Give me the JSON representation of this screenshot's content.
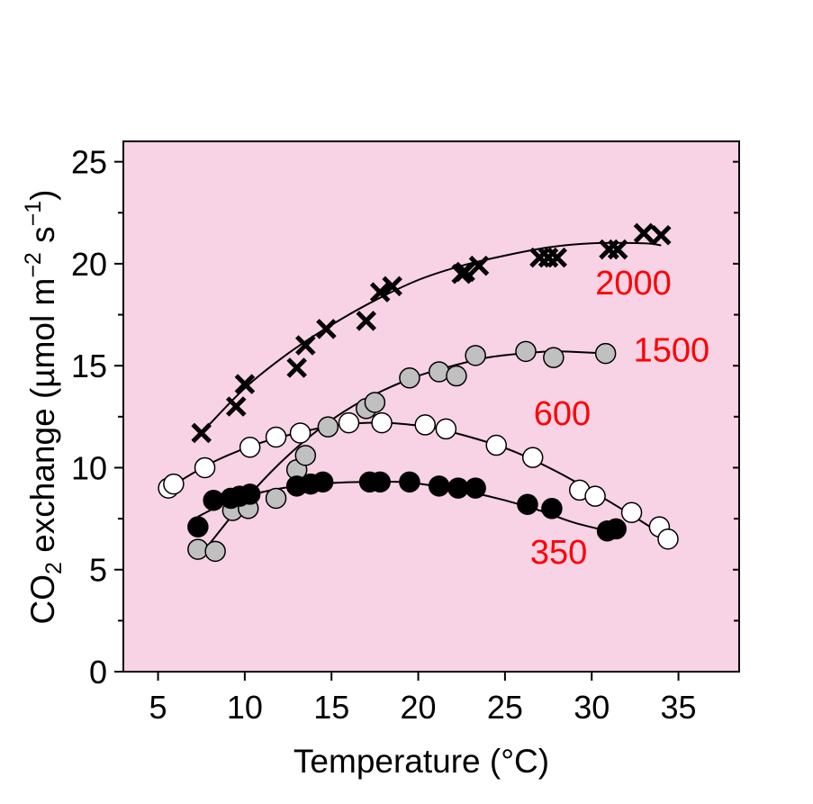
{
  "chart_data": {
    "type": "scatter",
    "xlabel": "Temperature (°C)",
    "ylabel": {
      "prefix": "CO",
      "subscript": "2",
      "middle": " exchange (µmol m",
      "exp1": "−2",
      "s": " s",
      "exp2": "−1",
      "suffix": ")"
    },
    "xlim": [
      3,
      38.5
    ],
    "ylim": [
      0,
      26
    ],
    "xticks": [
      5,
      10,
      15,
      20,
      25,
      30,
      35
    ],
    "yticks": [
      0,
      5,
      10,
      15,
      20,
      25
    ],
    "minor_yticks": [
      2.5,
      7.5,
      12.5,
      17.5,
      22.5
    ],
    "background_color": "#f8d2e5",
    "label_color": "#ff0000",
    "grid": false,
    "series": [
      {
        "name": "2000",
        "marker": "x",
        "fill": "#000000",
        "points": [
          [
            7.5,
            11.7
          ],
          [
            9.5,
            13.0
          ],
          [
            10,
            14.1
          ],
          [
            13,
            14.9
          ],
          [
            13.5,
            16.0
          ],
          [
            14.7,
            16.8
          ],
          [
            17,
            17.2
          ],
          [
            17.8,
            18.6
          ],
          [
            18.5,
            18.9
          ],
          [
            22.5,
            19.5
          ],
          [
            22.7,
            19.6
          ],
          [
            23.5,
            19.9
          ],
          [
            27,
            20.3
          ],
          [
            27.5,
            20.3
          ],
          [
            28,
            20.3
          ],
          [
            31,
            20.7
          ],
          [
            31.5,
            20.7
          ],
          [
            33,
            21.5
          ],
          [
            34,
            21.4
          ]
        ],
        "fit": [
          [
            7.5,
            11.7
          ],
          [
            10,
            13.9
          ],
          [
            12.5,
            15.6
          ],
          [
            15,
            17.0
          ],
          [
            17.5,
            18.2
          ],
          [
            20,
            19.2
          ],
          [
            22.5,
            19.9
          ],
          [
            25,
            20.4
          ],
          [
            27.5,
            20.8
          ],
          [
            30,
            21.0
          ],
          [
            33,
            21.0
          ],
          [
            34,
            20.9
          ]
        ]
      },
      {
        "name": "1500",
        "marker": "o",
        "fill": "#c0c0c0",
        "points": [
          [
            7.3,
            6.0
          ],
          [
            8.3,
            5.9
          ],
          [
            9.3,
            7.9
          ],
          [
            10.2,
            8.0
          ],
          [
            11.8,
            8.5
          ],
          [
            13,
            9.9
          ],
          [
            13.5,
            10.6
          ],
          [
            14.8,
            12.0
          ],
          [
            17,
            12.9
          ],
          [
            17.5,
            13.2
          ],
          [
            19.5,
            14.4
          ],
          [
            21.2,
            14.7
          ],
          [
            22.2,
            14.5
          ],
          [
            23.3,
            15.5
          ],
          [
            26.2,
            15.7
          ],
          [
            27.8,
            15.4
          ],
          [
            30.8,
            15.6
          ]
        ],
        "fit": [
          [
            8,
            6.3
          ],
          [
            10,
            8.4
          ],
          [
            12,
            10.2
          ],
          [
            14,
            11.7
          ],
          [
            16,
            12.9
          ],
          [
            18,
            13.8
          ],
          [
            20,
            14.5
          ],
          [
            22,
            15.0
          ],
          [
            24,
            15.4
          ],
          [
            26,
            15.6
          ],
          [
            28,
            15.7
          ],
          [
            31,
            15.6
          ]
        ]
      },
      {
        "name": "600",
        "marker": "o",
        "fill": "#ffffff",
        "points": [
          [
            5.6,
            9.0
          ],
          [
            5.9,
            9.2
          ],
          [
            7.7,
            10.0
          ],
          [
            10.3,
            11.0
          ],
          [
            11.8,
            11.5
          ],
          [
            13.2,
            11.7
          ],
          [
            16,
            12.2
          ],
          [
            17.9,
            12.2
          ],
          [
            20.4,
            12.1
          ],
          [
            21.6,
            11.9
          ],
          [
            24.5,
            11.1
          ],
          [
            26.6,
            10.5
          ],
          [
            29.3,
            8.9
          ],
          [
            30.2,
            8.6
          ],
          [
            32.3,
            7.8
          ],
          [
            33.9,
            7.1
          ],
          [
            34.4,
            6.5
          ]
        ],
        "fit": [
          [
            5.6,
            9.0
          ],
          [
            8,
            10.2
          ],
          [
            10.5,
            11.1
          ],
          [
            13,
            11.7
          ],
          [
            15.5,
            12.1
          ],
          [
            18,
            12.2
          ],
          [
            20.5,
            12.0
          ],
          [
            23,
            11.5
          ],
          [
            25.5,
            10.8
          ],
          [
            28,
            9.8
          ],
          [
            30.5,
            8.6
          ],
          [
            33,
            7.3
          ],
          [
            34.4,
            6.5
          ]
        ]
      },
      {
        "name": "350",
        "marker": "o",
        "fill": "#000000",
        "points": [
          [
            7.3,
            7.1
          ],
          [
            8.2,
            8.4
          ],
          [
            9.2,
            8.5
          ],
          [
            9.7,
            8.6
          ],
          [
            10.3,
            8.7
          ],
          [
            13,
            9.1
          ],
          [
            13.8,
            9.2
          ],
          [
            14.5,
            9.3
          ],
          [
            17.2,
            9.3
          ],
          [
            17.8,
            9.3
          ],
          [
            19.5,
            9.3
          ],
          [
            21.2,
            9.1
          ],
          [
            22.3,
            9.0
          ],
          [
            23.3,
            9.0
          ],
          [
            26.3,
            8.2
          ],
          [
            27.7,
            8.0
          ],
          [
            30.9,
            6.9
          ],
          [
            31.4,
            7.0
          ]
        ],
        "fit": [
          [
            7.3,
            7.6
          ],
          [
            9,
            8.3
          ],
          [
            11,
            8.8
          ],
          [
            13,
            9.1
          ],
          [
            15,
            9.25
          ],
          [
            17,
            9.3
          ],
          [
            19,
            9.3
          ],
          [
            21,
            9.1
          ],
          [
            23,
            8.8
          ],
          [
            25,
            8.4
          ],
          [
            27,
            7.9
          ],
          [
            29,
            7.3
          ],
          [
            31.4,
            6.8
          ]
        ]
      }
    ],
    "annotations": [
      {
        "text": "2000",
        "x": 32.4,
        "y": 18.5
      },
      {
        "text": "1500",
        "x": 34.6,
        "y": 15.2
      },
      {
        "text": "600",
        "x": 28.3,
        "y": 12.1
      },
      {
        "text": "350",
        "x": 28.1,
        "y": 5.3
      }
    ]
  }
}
